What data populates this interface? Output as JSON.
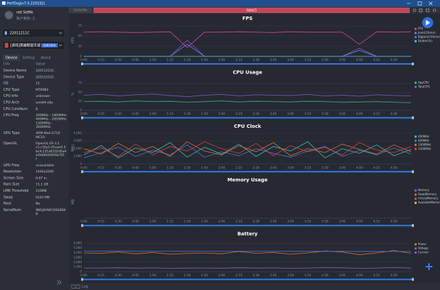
{
  "window": {
    "title": "PerfDog(v7.0.220332)"
  },
  "user": {
    "name": "net 5e9fe",
    "balance": "账户剩余: 2-"
  },
  "device": {
    "selected": "22011211C"
  },
  "app": {
    "name": "[游戏]英雄联盟手游",
    "badge": "应用已启动"
  },
  "tabs": [
    "Device",
    "Setting",
    "About"
  ],
  "table": {
    "header": [
      "Info",
      "Value"
    ],
    "rows": [
      {
        "label": "Device Name",
        "value": [
          "22011211C"
        ]
      },
      {
        "label": "Device Type",
        "value": [
          "22011211C"
        ]
      },
      {
        "label": "OS",
        "value": [
          "12"
        ]
      },
      {
        "label": "CPU Type",
        "value": [
          "MT6983"
        ]
      },
      {
        "label": "CPU Info",
        "value": [
          "unknown"
        ]
      },
      {
        "label": "CPU Arch",
        "value": [
          "arm64-v8a"
        ]
      },
      {
        "label": "CPU CoreNum",
        "value": [
          "8"
        ]
      },
      {
        "label": "CPU Freq",
        "value": [
          "200MHz - 1800MHz",
          "400MHz - 2850MHz",
          "1300MHz -",
          "3000MHz"
        ]
      },
      {
        "label": "GPU Type",
        "value": [
          "ARM Mali-G710",
          "MC10"
        ]
      },
      {
        "label": "OpenGL",
        "value": [
          "OpenGL ES 3.2",
          "v1.r32p1-01eac0.5",
          "bcfc131a8332d5a4",
          "e0dd9e0d5fda701",
          "f"
        ]
      },
      {
        "label": "GPU Freq",
        "value": [
          "unavailable"
        ]
      },
      {
        "label": "Resolution",
        "value": [
          "1440x3200"
        ]
      },
      {
        "label": "Screen Size",
        "value": [
          "6.67 in"
        ]
      },
      {
        "label": "Ram Size",
        "value": [
          "11.1 GB"
        ]
      },
      {
        "label": "LMK Threshold",
        "value": [
          "216MB"
        ]
      },
      {
        "label": "Swap",
        "value": [
          "6143 MB"
        ]
      },
      {
        "label": "Root",
        "value": [
          "No"
        ]
      },
      {
        "label": "SerialNum",
        "value": [
          "9BGJ4HWC49G8S8",
          "B"
        ]
      }
    ]
  },
  "scene": {
    "tab": "SceneTab",
    "label": "label1"
  },
  "footer": {
    "log": "Log"
  },
  "chart_data": [
    {
      "type": "line",
      "title": "FPS",
      "y_label": "FPS",
      "x": [
        0,
        15,
        30,
        45,
        60,
        75,
        90,
        105,
        120,
        135,
        150,
        165,
        180,
        195,
        210,
        225,
        240,
        255,
        270,
        285
      ],
      "xlim": [
        0,
        285
      ],
      "xticks": [
        {
          "value": 0,
          "label": "0:00"
        },
        {
          "value": 15,
          "label": "0:15"
        },
        {
          "value": 30,
          "label": "0:30"
        },
        {
          "value": 45,
          "label": "0:45"
        },
        {
          "value": 60,
          "label": "1:00"
        },
        {
          "value": 75,
          "label": "1:15"
        },
        {
          "value": 90,
          "label": "1:30"
        },
        {
          "value": 105,
          "label": "1:45"
        },
        {
          "value": 120,
          "label": "2:00"
        },
        {
          "value": 135,
          "label": "2:15"
        },
        {
          "value": 150,
          "label": "2:30"
        },
        {
          "value": 165,
          "label": "2:45"
        },
        {
          "value": 180,
          "label": "3:00"
        },
        {
          "value": 195,
          "label": "3:15"
        },
        {
          "value": 210,
          "label": "3:30"
        },
        {
          "value": 225,
          "label": "3:45"
        },
        {
          "value": 240,
          "label": "4:00"
        },
        {
          "value": 255,
          "label": "4:15"
        },
        {
          "value": 270,
          "label": "4:30"
        }
      ],
      "ylim": [
        0,
        80
      ],
      "yticks": [
        0,
        25,
        50,
        75
      ],
      "series": [
        {
          "name": "FPS",
          "color": "#e040a8",
          "values": [
            60,
            61,
            60,
            59,
            60,
            61,
            22,
            60,
            60,
            61,
            60,
            59,
            61,
            60,
            60,
            60,
            30,
            61,
            60,
            61
          ]
        },
        {
          "name": "Jank(/10min)",
          "color": "#5a86ff",
          "values": [
            0,
            0,
            0,
            0,
            0,
            0,
            30,
            0,
            0,
            0,
            0,
            0,
            0,
            0,
            0,
            0,
            15,
            0,
            0,
            0
          ]
        },
        {
          "name": "BigJank(/10min)",
          "color": "#9a55d8",
          "values": [
            0,
            0,
            0,
            0,
            0,
            0,
            40,
            0,
            0,
            0,
            0,
            0,
            0,
            0,
            0,
            0,
            20,
            0,
            0,
            0
          ]
        },
        {
          "name": "Stutter(%)",
          "color": "#3fc6e6",
          "values": [
            0,
            0,
            0,
            0,
            0,
            0,
            0,
            0,
            0,
            0,
            0,
            0,
            0,
            0,
            0,
            0,
            0,
            0,
            0,
            0
          ]
        }
      ]
    },
    {
      "type": "line",
      "title": "CPU Usage",
      "y_label": "%",
      "x": [
        0,
        15,
        30,
        45,
        60,
        75,
        90,
        105,
        120,
        135,
        150,
        165,
        180,
        195,
        210,
        225,
        240,
        255,
        270,
        285
      ],
      "xlim": [
        0,
        285
      ],
      "xticks": [
        {
          "value": 0,
          "label": "0:00"
        },
        {
          "value": 15,
          "label": "0:15"
        },
        {
          "value": 30,
          "label": "0:30"
        },
        {
          "value": 45,
          "label": "0:45"
        },
        {
          "value": 60,
          "label": "1:00"
        },
        {
          "value": 75,
          "label": "1:15"
        },
        {
          "value": 90,
          "label": "1:30"
        },
        {
          "value": 105,
          "label": "1:45"
        },
        {
          "value": 120,
          "label": "2:00"
        },
        {
          "value": 135,
          "label": "2:15"
        },
        {
          "value": 150,
          "label": "2:30"
        },
        {
          "value": 165,
          "label": "2:45"
        },
        {
          "value": 180,
          "label": "3:00"
        },
        {
          "value": 195,
          "label": "3:15"
        },
        {
          "value": 210,
          "label": "3:30"
        },
        {
          "value": 225,
          "label": "3:45"
        },
        {
          "value": 240,
          "label": "4:00"
        },
        {
          "value": 255,
          "label": "4:15"
        },
        {
          "value": 270,
          "label": "4:30"
        }
      ],
      "ylim": [
        0,
        90
      ],
      "yticks": [
        0,
        25,
        50,
        75
      ],
      "series": [
        {
          "name": "AppCPU",
          "color": "#3cb878",
          "values": [
            24,
            25,
            23,
            26,
            24,
            25,
            22,
            24,
            26,
            23,
            25,
            24,
            23,
            25,
            24,
            22,
            23,
            24,
            22,
            21
          ]
        },
        {
          "name": "TotalCPU",
          "color": "#7b5cd6",
          "values": [
            42,
            44,
            40,
            43,
            45,
            41,
            38,
            42,
            44,
            40,
            43,
            42,
            41,
            44,
            40,
            42,
            39,
            43,
            41,
            40
          ]
        }
      ]
    },
    {
      "type": "line",
      "title": "CPU Clock",
      "y_label": "MHz",
      "x": [
        0,
        15,
        30,
        45,
        60,
        75,
        90,
        105,
        120,
        135,
        150,
        165,
        180,
        195,
        210,
        225,
        240,
        255,
        270,
        285
      ],
      "xlim": [
        0,
        285
      ],
      "xticks": [
        {
          "value": 0,
          "label": "0:00"
        },
        {
          "value": 15,
          "label": "0:15"
        },
        {
          "value": 30,
          "label": "0:30"
        },
        {
          "value": 45,
          "label": "0:45"
        },
        {
          "value": 60,
          "label": "1:00"
        },
        {
          "value": 75,
          "label": "1:15"
        },
        {
          "value": 90,
          "label": "1:30"
        },
        {
          "value": 105,
          "label": "1:45"
        },
        {
          "value": 120,
          "label": "2:00"
        },
        {
          "value": 135,
          "label": "2:15"
        },
        {
          "value": 150,
          "label": "2:30"
        },
        {
          "value": 165,
          "label": "2:45"
        },
        {
          "value": 180,
          "label": "3:00"
        },
        {
          "value": 195,
          "label": "3:15"
        },
        {
          "value": 210,
          "label": "3:30"
        },
        {
          "value": 225,
          "label": "3:45"
        },
        {
          "value": 240,
          "label": "4:00"
        },
        {
          "value": 255,
          "label": "4:15"
        },
        {
          "value": 270,
          "label": "4:30"
        }
      ],
      "ylim": [
        0,
        4200
      ],
      "yticks": [
        0,
        {
          "value": 1000,
          "label": "1,000"
        },
        {
          "value": 2000,
          "label": "2,000"
        },
        {
          "value": 3000,
          "label": "3,000"
        },
        {
          "value": 4000,
          "label": "4,000"
        }
      ],
      "series": [
        {
          "name": "400MHz",
          "color": "#3fc1b5",
          "values": [
            1200,
            2400,
            800,
            2100,
            1500,
            2800,
            900,
            2200,
            1300,
            2600,
            1000,
            2300,
            1700,
            2900,
            800,
            2000,
            1400,
            2500,
            1100,
            1900
          ]
        },
        {
          "name": "400MHz",
          "color": "#4a7bd8",
          "values": [
            800,
            1500,
            2200,
            1000,
            1800,
            1200,
            2500,
            900,
            1600,
            1100,
            2000,
            1400,
            900,
            1700,
            2300,
            1000,
            1800,
            1200,
            2100,
            1300
          ]
        },
        {
          "name": "1300MHz",
          "color": "#e0703a",
          "values": [
            2000,
            1300,
            2700,
            1500,
            2300,
            1000,
            2900,
            1700,
            1200,
            2400,
            1600,
            2800,
            1100,
            2000,
            1500,
            2600,
            1900,
            1300,
            2500,
            1600
          ]
        },
        {
          "name": "1300MHz",
          "color": "#d94040",
          "values": [
            1500,
            2100,
            1000,
            2600,
            1200,
            2300,
            1700,
            2900,
            2000,
            1400,
            2700,
            1100,
            2400,
            1600,
            2200,
            1200,
            2800,
            1800,
            1500,
            2300
          ]
        }
      ]
    },
    {
      "type": "line",
      "title": "Memory Usage",
      "y_label": "MB",
      "x": [],
      "xlim": [
        0,
        285
      ],
      "xticks": [
        {
          "value": 0,
          "label": "0:00"
        },
        {
          "value": 15,
          "label": "0:15"
        },
        {
          "value": 30,
          "label": "0:30"
        },
        {
          "value": 45,
          "label": "0:45"
        },
        {
          "value": 60,
          "label": "1:00"
        },
        {
          "value": 75,
          "label": "1:15"
        },
        {
          "value": 90,
          "label": "1:30"
        },
        {
          "value": 105,
          "label": "1:45"
        },
        {
          "value": 120,
          "label": "2:00"
        },
        {
          "value": 135,
          "label": "2:15"
        },
        {
          "value": 150,
          "label": "2:30"
        },
        {
          "value": 165,
          "label": "2:45"
        },
        {
          "value": 180,
          "label": "3:00"
        },
        {
          "value": 195,
          "label": "3:15"
        },
        {
          "value": 210,
          "label": "3:30"
        },
        {
          "value": 225,
          "label": "3:45"
        },
        {
          "value": 240,
          "label": "4:00"
        },
        {
          "value": 255,
          "label": "4:15"
        },
        {
          "value": 270,
          "label": "4:30"
        }
      ],
      "yticks": [],
      "series": [
        {
          "name": "Memory",
          "color": "#8a5cd6",
          "values": []
        },
        {
          "name": "SwapMemory",
          "color": "#e0703a",
          "values": []
        },
        {
          "name": "VirtualMemory",
          "color": "#e040a8",
          "values": []
        },
        {
          "name": "AvailableMemory",
          "color": "#e0c040",
          "values": []
        }
      ]
    },
    {
      "type": "line",
      "title": "Battery",
      "x": [
        0,
        15,
        30,
        45,
        60,
        75,
        90,
        105,
        120,
        135,
        150,
        165,
        180,
        195,
        210,
        225,
        240,
        255,
        270,
        285
      ],
      "xlim": [
        0,
        285
      ],
      "xticks": [
        {
          "value": 0,
          "label": "0:00"
        },
        {
          "value": 15,
          "label": "0:15"
        },
        {
          "value": 30,
          "label": "0:30"
        },
        {
          "value": 45,
          "label": "0:45"
        },
        {
          "value": 60,
          "label": "1:00"
        },
        {
          "value": 75,
          "label": "1:15"
        },
        {
          "value": 90,
          "label": "1:30"
        },
        {
          "value": 105,
          "label": "1:45"
        },
        {
          "value": 120,
          "label": "2:00"
        },
        {
          "value": 135,
          "label": "2:15"
        },
        {
          "value": 150,
          "label": "2:30"
        },
        {
          "value": 165,
          "label": "2:45"
        },
        {
          "value": 180,
          "label": "3:00"
        },
        {
          "value": 195,
          "label": "3:15"
        },
        {
          "value": 210,
          "label": "3:30"
        },
        {
          "value": 225,
          "label": "3:45"
        },
        {
          "value": 240,
          "label": "4:00"
        },
        {
          "value": 255,
          "label": "4:15"
        },
        {
          "value": 270,
          "label": "4:30"
        }
      ],
      "ylim": [
        0,
        6800
      ],
      "yticks": [
        0,
        {
          "value": 1000,
          "label": "1,000"
        },
        {
          "value": 2000,
          "label": "2,000"
        },
        {
          "value": 3000,
          "label": "3,000"
        },
        {
          "value": 4000,
          "label": "4,000"
        },
        {
          "value": 5000,
          "label": "5,000"
        },
        {
          "value": 6000,
          "label": "6,000"
        }
      ],
      "series": [
        {
          "name": "Power",
          "color": "#e0703a",
          "values": [
            4000,
            3900,
            4200,
            3800,
            4100,
            3700,
            3900,
            4000,
            3800,
            4300,
            3900,
            4100,
            3700,
            4000,
            4400,
            4200,
            3600,
            4000,
            4500,
            3900
          ]
        },
        {
          "name": "Voltage",
          "color": "#4a7bd8",
          "values": [
            4400,
            4390,
            4380,
            4380,
            4370,
            4370,
            4360,
            4360,
            4350,
            4350,
            4340,
            4340,
            4330,
            4330,
            4320,
            4320,
            4310,
            4310,
            4300,
            4300
          ]
        },
        {
          "name": "Current",
          "color": "#8a5cd6",
          "values": [
            800,
            790,
            850,
            760,
            820,
            740,
            780,
            800,
            760,
            860,
            780,
            820,
            740,
            800,
            880,
            840,
            720,
            800,
            900,
            780
          ]
        }
      ]
    }
  ]
}
